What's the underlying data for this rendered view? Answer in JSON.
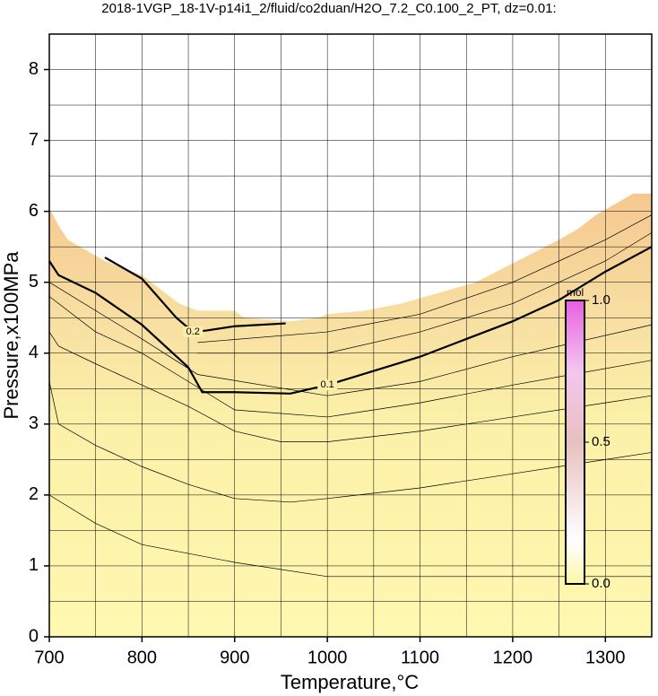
{
  "chart_data": {
    "type": "contour",
    "title": "2018-1VGP_18-1V-p14i1_2/fluid/co2duan/H2O_7.2_C0.100_2_PT, dz=0.01:",
    "x_label": "Temperature,°C",
    "y_label": "Pressure,x100MPa",
    "xlim": [
      700,
      1350
    ],
    "ylim": [
      0,
      8.5
    ],
    "xticks": [
      700,
      800,
      900,
      1000,
      1100,
      1200,
      1300
    ],
    "yticks": [
      0,
      1,
      2,
      3,
      4,
      5,
      6,
      7,
      8
    ],
    "xgrid": [
      750,
      800,
      850,
      900,
      950,
      1000,
      1050,
      1100,
      1150,
      1200,
      1250,
      1300
    ],
    "ygrid": [
      0.5,
      1,
      1.5,
      2,
      2.5,
      3,
      3.5,
      4,
      4.5,
      5,
      5.5,
      6,
      6.5,
      7,
      7.5,
      8
    ],
    "region": {
      "x": [
        700,
        710,
        720,
        740,
        760,
        780,
        800,
        820,
        840,
        860,
        900,
        910,
        960,
        990,
        1000,
        1040,
        1080,
        1120,
        1160,
        1190,
        1220,
        1250,
        1270,
        1290,
        1310,
        1330,
        1350
      ],
      "y": [
        6.05,
        5.8,
        5.6,
        5.45,
        5.3,
        5.2,
        5.1,
        4.9,
        4.7,
        4.6,
        4.6,
        4.5,
        4.45,
        4.5,
        4.55,
        4.6,
        4.7,
        4.85,
        5.0,
        5.2,
        5.4,
        5.6,
        5.75,
        5.95,
        6.1,
        6.25,
        6.25
      ]
    },
    "contours": [
      {
        "label": "0.1",
        "x": [
          700,
          710,
          750,
          800,
          850,
          865,
          900,
          960,
          1000,
          1050,
          1100,
          1150,
          1200,
          1250,
          1300,
          1350
        ],
        "y": [
          5.3,
          5.1,
          4.85,
          4.4,
          3.8,
          3.45,
          3.45,
          3.43,
          3.55,
          3.75,
          3.95,
          4.2,
          4.45,
          4.75,
          5.15,
          5.5
        ]
      },
      {
        "label": "0.2",
        "x": [
          760,
          800,
          837,
          855,
          870,
          900,
          955
        ],
        "y": [
          5.35,
          5.05,
          4.5,
          4.3,
          4.32,
          4.38,
          4.42
        ]
      },
      {
        "x": [
          700,
          750,
          800,
          900,
          1000,
          1100,
          1350
        ],
        "y": [
          2.0,
          1.6,
          1.3,
          1.05,
          0.85,
          0.85,
          0.85
        ]
      },
      {
        "x": [
          700,
          710,
          750,
          800,
          850,
          900,
          960,
          1000,
          1100,
          1200,
          1300,
          1350
        ],
        "y": [
          3.6,
          3.0,
          2.7,
          2.4,
          2.15,
          1.95,
          1.9,
          1.95,
          2.1,
          2.3,
          2.5,
          2.6
        ]
      },
      {
        "x": [
          700,
          710,
          750,
          800,
          850,
          900,
          950,
          1000,
          1100,
          1200,
          1300,
          1350
        ],
        "y": [
          4.3,
          4.1,
          3.85,
          3.55,
          3.25,
          2.9,
          2.75,
          2.75,
          2.9,
          3.1,
          3.3,
          3.4
        ]
      },
      {
        "x": [
          700,
          750,
          800,
          850,
          900,
          1000,
          1100,
          1200,
          1350
        ],
        "y": [
          4.8,
          4.3,
          4.0,
          3.6,
          3.2,
          3.1,
          3.3,
          3.55,
          3.9
        ]
      },
      {
        "x": [
          700,
          800,
          860,
          1000,
          1100,
          1200,
          1350
        ],
        "y": [
          5.0,
          4.2,
          3.7,
          3.4,
          3.6,
          3.95,
          4.4
        ]
      },
      {
        "x": [
          860,
          1000,
          1100,
          1200,
          1300,
          1350
        ],
        "y": [
          4.0,
          4.0,
          4.3,
          4.7,
          5.3,
          5.7
        ]
      },
      {
        "x": [
          860,
          1000,
          1100,
          1200,
          1300,
          1350
        ],
        "y": [
          4.15,
          4.3,
          4.55,
          5.0,
          5.6,
          5.95
        ]
      }
    ],
    "colorbar": {
      "label": "mol",
      "lim": [
        0,
        1
      ],
      "ticks": [
        {
          "value": 0,
          "label": "0.0"
        },
        {
          "value": 0.5,
          "label": "0.5"
        },
        {
          "value": 1,
          "label": "1.0"
        }
      ]
    }
  }
}
